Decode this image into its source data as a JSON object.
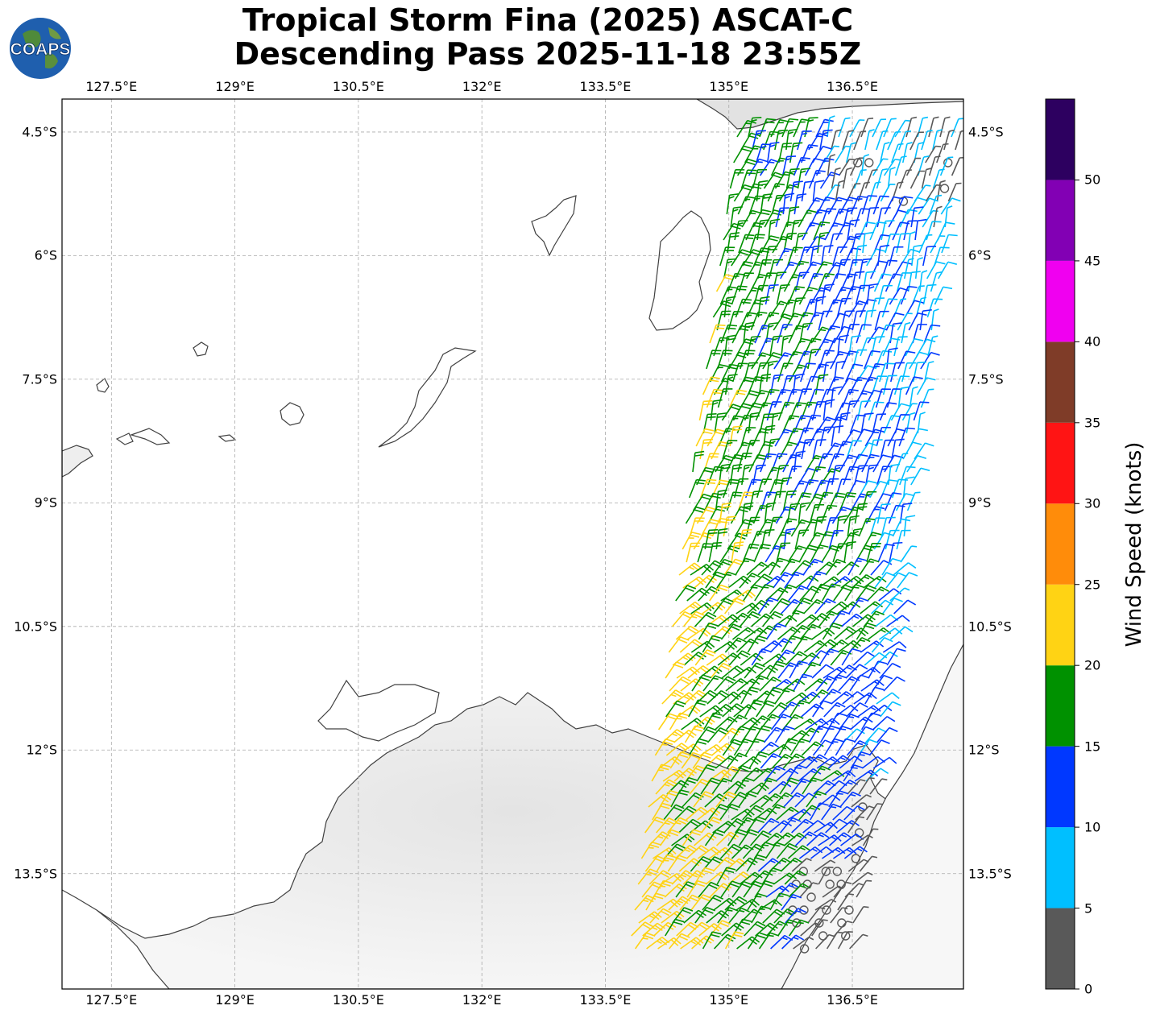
{
  "title": {
    "line1": "Tropical Storm Fina (2025) ASCAT-C",
    "line2": "Descending Pass 2025-11-18 23:55Z"
  },
  "logo": {
    "text": "COAPS",
    "icon": "globe-icon"
  },
  "map": {
    "lon_range": [
      126.9,
      137.85
    ],
    "lat_range": [
      -14.9,
      -4.1
    ],
    "gridlines": true,
    "lon_ticks": [
      {
        "value": 127.5,
        "label": "127.5°E"
      },
      {
        "value": 129,
        "label": "129°E"
      },
      {
        "value": 130.5,
        "label": "130.5°E"
      },
      {
        "value": 132,
        "label": "132°E"
      },
      {
        "value": 133.5,
        "label": "133.5°E"
      },
      {
        "value": 135,
        "label": "135°E"
      },
      {
        "value": 136.5,
        "label": "136.5°E"
      }
    ],
    "lat_ticks": [
      {
        "value": -4.5,
        "label": "4.5°S"
      },
      {
        "value": -6,
        "label": "6°S"
      },
      {
        "value": -7.5,
        "label": "7.5°S"
      },
      {
        "value": -9,
        "label": "9°S"
      },
      {
        "value": -10.5,
        "label": "10.5°S"
      },
      {
        "value": -12,
        "label": "12°S"
      },
      {
        "value": -13.5,
        "label": "13.5°S"
      }
    ]
  },
  "colorbar": {
    "label": "Wind Speed (knots)",
    "ticks": [
      "0",
      "5",
      "10",
      "15",
      "20",
      "25",
      "30",
      "35",
      "40",
      "45",
      "50"
    ],
    "bins": [
      {
        "from": 0,
        "to": 5,
        "color": "#595959"
      },
      {
        "from": 5,
        "to": 10,
        "color": "#00bfff"
      },
      {
        "from": 10,
        "to": 15,
        "color": "#0038ff"
      },
      {
        "from": 15,
        "to": 20,
        "color": "#009100"
      },
      {
        "from": 20,
        "to": 25,
        "color": "#ffd314"
      },
      {
        "from": 25,
        "to": 30,
        "color": "#ff8c0a"
      },
      {
        "from": 30,
        "to": 35,
        "color": "#ff1414"
      },
      {
        "from": 35,
        "to": 40,
        "color": "#7f3c28"
      },
      {
        "from": 40,
        "to": 45,
        "color": "#f000f0"
      },
      {
        "from": 45,
        "to": 50,
        "color": "#8200b4"
      },
      {
        "from": 50,
        "to": 55,
        "color": "#2d0060"
      }
    ]
  }
}
